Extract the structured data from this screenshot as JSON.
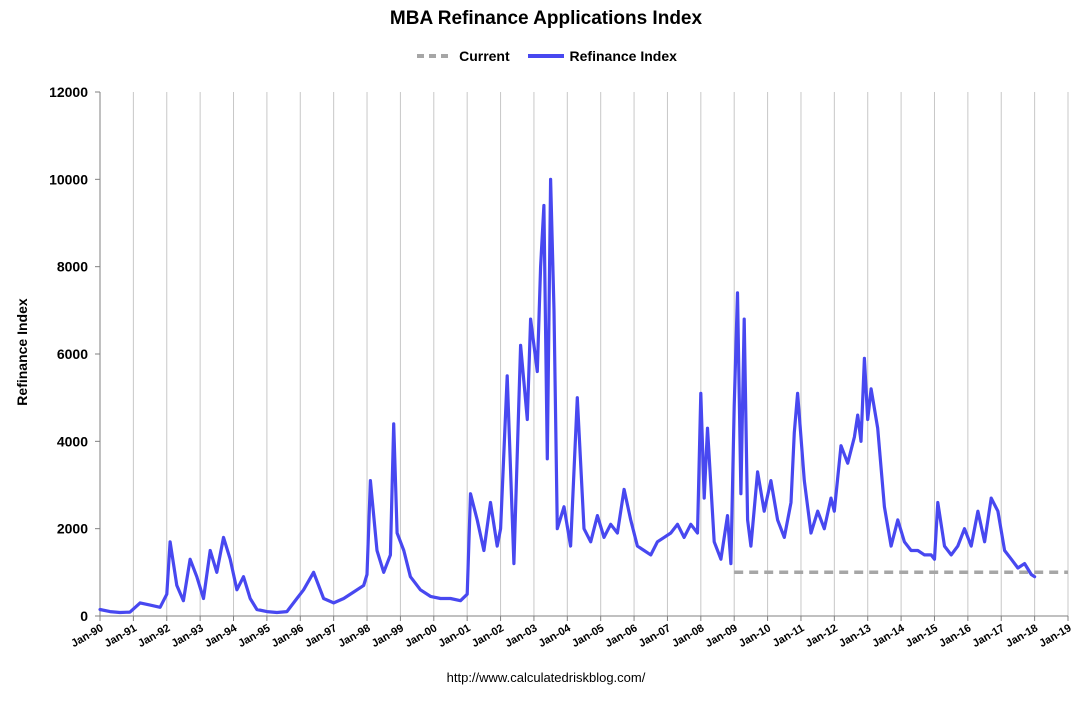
{
  "chart_data": {
    "type": "line",
    "title": "MBA Refinance Applications Index",
    "xlabel": "",
    "ylabel": "Refinance Index",
    "source_url": "http://www.calculatedriskblog.com/",
    "ylim": [
      0,
      12000
    ],
    "yticks": [
      0,
      2000,
      4000,
      6000,
      8000,
      10000,
      12000
    ],
    "xlim": [
      1990,
      2019
    ],
    "xtick_labels": [
      "Jan-90",
      "Jan-91",
      "Jan-92",
      "Jan-93",
      "Jan-94",
      "Jan-95",
      "Jan-96",
      "Jan-97",
      "Jan-98",
      "Jan-99",
      "Jan-00",
      "Jan-01",
      "Jan-02",
      "Jan-03",
      "Jan-04",
      "Jan-05",
      "Jan-06",
      "Jan-07",
      "Jan-08",
      "Jan-09",
      "Jan-10",
      "Jan-11",
      "Jan-12",
      "Jan-13",
      "Jan-14",
      "Jan-15",
      "Jan-16",
      "Jan-17",
      "Jan-18",
      "Jan-19"
    ],
    "grid": "vertical",
    "legend_position": "top-center",
    "series": [
      {
        "name": "Current",
        "style": "dashed",
        "color": "#a6a6a6",
        "x": [
          2009.0,
          2019.0
        ],
        "y": [
          1000,
          1000
        ]
      },
      {
        "name": "Refinance Index",
        "style": "solid",
        "color": "#4848f0",
        "x": [
          1990.0,
          1990.3,
          1990.6,
          1990.9,
          1991.2,
          1991.5,
          1991.8,
          1992.0,
          1992.1,
          1992.3,
          1992.5,
          1992.7,
          1992.9,
          1993.1,
          1993.3,
          1993.5,
          1993.7,
          1993.9,
          1994.1,
          1994.3,
          1994.5,
          1994.7,
          1995.0,
          1995.3,
          1995.6,
          1995.9,
          1996.1,
          1996.4,
          1996.7,
          1997.0,
          1997.3,
          1997.6,
          1997.9,
          1998.0,
          1998.1,
          1998.3,
          1998.5,
          1998.7,
          1998.8,
          1998.9,
          1999.1,
          1999.3,
          1999.6,
          1999.9,
          2000.2,
          2000.5,
          2000.8,
          2001.0,
          2001.1,
          2001.3,
          2001.5,
          2001.7,
          2001.9,
          2002.0,
          2002.2,
          2002.4,
          2002.6,
          2002.8,
          2002.9,
          2003.1,
          2003.2,
          2003.3,
          2003.4,
          2003.5,
          2003.6,
          2003.7,
          2003.9,
          2004.1,
          2004.3,
          2004.5,
          2004.7,
          2004.9,
          2005.1,
          2005.3,
          2005.5,
          2005.7,
          2005.9,
          2006.1,
          2006.3,
          2006.5,
          2006.7,
          2006.9,
          2007.1,
          2007.3,
          2007.5,
          2007.7,
          2007.9,
          2008.0,
          2008.1,
          2008.2,
          2008.4,
          2008.6,
          2008.8,
          2008.9,
          2009.0,
          2009.1,
          2009.2,
          2009.3,
          2009.4,
          2009.5,
          2009.7,
          2009.9,
          2010.1,
          2010.3,
          2010.5,
          2010.7,
          2010.8,
          2010.9,
          2011.1,
          2011.3,
          2011.5,
          2011.7,
          2011.9,
          2012.0,
          2012.2,
          2012.4,
          2012.6,
          2012.7,
          2012.8,
          2012.9,
          2013.0,
          2013.1,
          2013.3,
          2013.5,
          2013.7,
          2013.9,
          2014.1,
          2014.3,
          2014.5,
          2014.7,
          2014.9,
          2015.0,
          2015.1,
          2015.3,
          2015.5,
          2015.7,
          2015.9,
          2016.1,
          2016.3,
          2016.5,
          2016.7,
          2016.9,
          2017.1,
          2017.3,
          2017.5,
          2017.7,
          2017.9,
          2018.0
        ],
        "y": [
          150,
          100,
          80,
          90,
          300,
          250,
          200,
          500,
          1700,
          700,
          350,
          1300,
          900,
          400,
          1500,
          1000,
          1800,
          1300,
          600,
          900,
          400,
          150,
          100,
          80,
          100,
          400,
          600,
          1000,
          400,
          300,
          400,
          550,
          700,
          950,
          3100,
          1500,
          1000,
          1400,
          4400,
          1900,
          1500,
          900,
          600,
          450,
          400,
          400,
          350,
          500,
          2800,
          2200,
          1500,
          2600,
          1600,
          2000,
          5500,
          1200,
          6200,
          4500,
          6800,
          5600,
          8000,
          9400,
          3600,
          10000,
          7000,
          2000,
          2500,
          1600,
          5000,
          2000,
          1700,
          2300,
          1800,
          2100,
          1900,
          2900,
          2200,
          1600,
          1500,
          1400,
          1700,
          1800,
          1900,
          2100,
          1800,
          2100,
          1900,
          5100,
          2700,
          4300,
          1700,
          1300,
          2300,
          1200,
          4800,
          7400,
          2800,
          6800,
          2200,
          1600,
          3300,
          2400,
          3100,
          2200,
          1800,
          2600,
          4200,
          5100,
          3100,
          1900,
          2400,
          2000,
          2700,
          2400,
          3900,
          3500,
          4100,
          4600,
          4000,
          5900,
          4500,
          5200,
          4300,
          2500,
          1600,
          2200,
          1700,
          1500,
          1500,
          1400,
          1400,
          1300,
          2600,
          1600,
          1400,
          1600,
          2000,
          1600,
          2400,
          1700,
          2700,
          2400,
          1500,
          1300,
          1100,
          1200,
          950,
          900
        ]
      }
    ]
  }
}
